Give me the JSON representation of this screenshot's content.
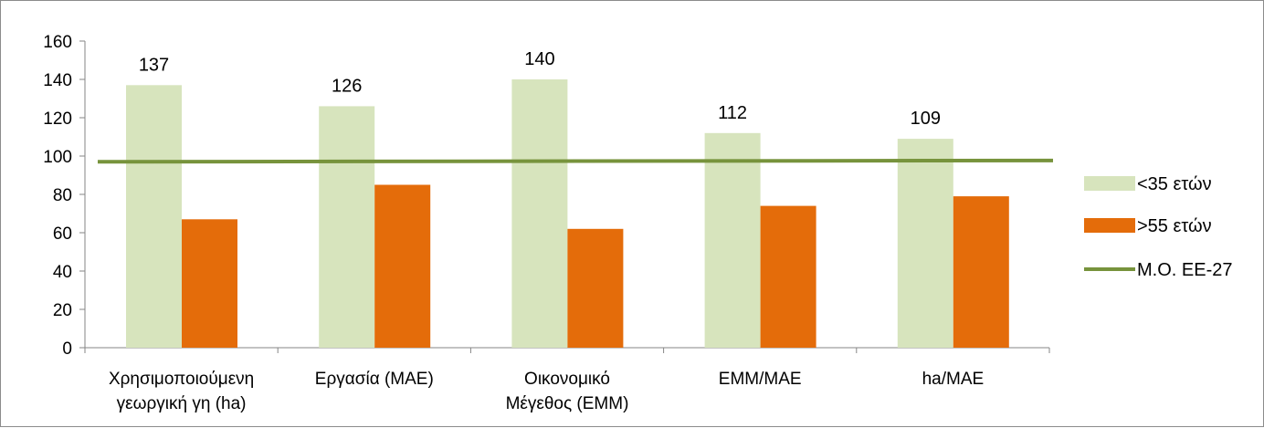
{
  "chart_data": {
    "type": "bar",
    "categories": [
      [
        "Χρησιμοποιούμενη",
        "γεωργική γη (ha)"
      ],
      [
        "Εργασία (ΜΑΕ)"
      ],
      [
        "Οικονομικό",
        "Μέγεθος (ΕΜΜ)"
      ],
      [
        "ΕΜΜ/ΜΑΕ"
      ],
      [
        "ha/ΜΑΕ"
      ]
    ],
    "series": [
      {
        "name": "<35 ετών",
        "type": "bar",
        "values": [
          137,
          126,
          140,
          112,
          109
        ],
        "color": "#d7e4bd",
        "show_labels": true
      },
      {
        "name": ">55 ετών",
        "type": "bar",
        "values": [
          67,
          85,
          62,
          74,
          79
        ],
        "color": "#e46c0a",
        "show_labels": false
      },
      {
        "name": "Μ.Ο. ΕΕ-27",
        "type": "line",
        "values": [
          97,
          97.1,
          97.3,
          97.5,
          97.7
        ],
        "color": "#77933c"
      }
    ],
    "ylim": [
      0,
      160
    ],
    "yticks": [
      0,
      20,
      40,
      60,
      80,
      100,
      120,
      140,
      160
    ],
    "grid": false,
    "legend_position": "right"
  }
}
